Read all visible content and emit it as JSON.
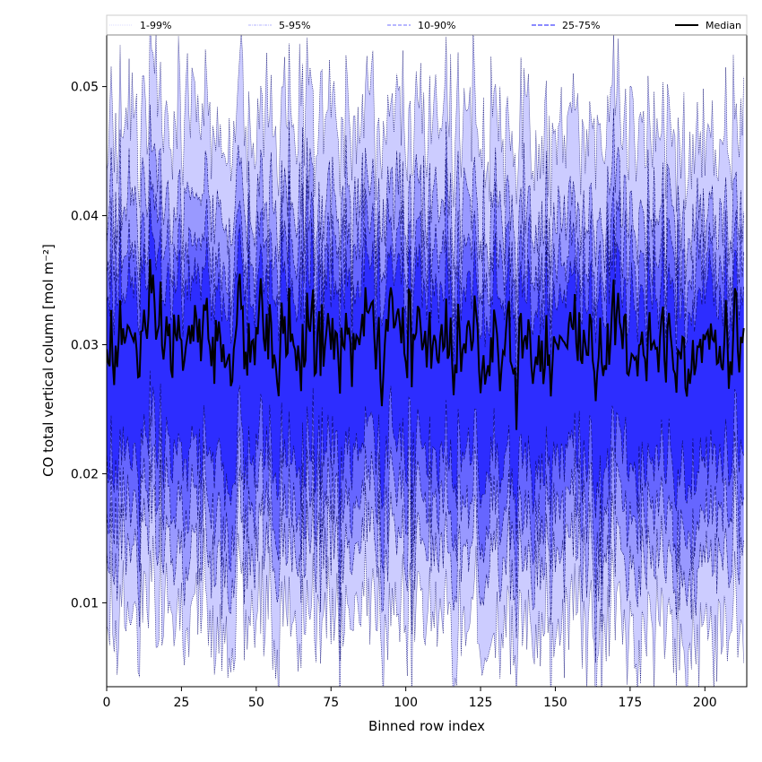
{
  "chart_data": {
    "type": "area",
    "xlabel": "Binned row index",
    "ylabel": "CO total vertical column [mol m⁻²]",
    "xlim": [
      0,
      214
    ],
    "ylim": [
      0.0035,
      0.054
    ],
    "x_ticks": [
      "0",
      "25",
      "50",
      "75",
      "100",
      "125",
      "150",
      "175",
      "200"
    ],
    "x_tick_values": [
      0,
      25,
      50,
      75,
      100,
      125,
      150,
      175,
      200
    ],
    "y_ticks": [
      "0.01",
      "0.02",
      "0.03",
      "0.04",
      "0.05"
    ],
    "y_tick_values": [
      0.01,
      0.02,
      0.03,
      0.04,
      0.05
    ],
    "grid": false,
    "legend_position": "top",
    "legend": [
      {
        "label": "1-99%",
        "style": "dotted",
        "color": "#d0d0ff"
      },
      {
        "label": "5-95%",
        "style": "dashdot",
        "color": "#9a9aff"
      },
      {
        "label": "10-90%",
        "style": "dashed",
        "color": "#6c6cff"
      },
      {
        "label": "25-75%",
        "style": "dashed",
        "color": "#4343ff"
      },
      {
        "label": "Median",
        "style": "solid",
        "color": "#000000"
      }
    ],
    "colors": {
      "band_1_99": "#ccccff",
      "band_5_95": "#9999ff",
      "band_10_90": "#6666ff",
      "band_25_75": "#2d2dff",
      "median": "#000000",
      "edge": "#0a0a6e"
    },
    "x_range": [
      0,
      213
    ],
    "approx_levels": {
      "p99": 0.044,
      "p95": 0.0375,
      "p90": 0.035,
      "p75": 0.033,
      "median": 0.0303,
      "p25": 0.0225,
      "p10": 0.0195,
      "p5": 0.0165,
      "p1": 0.0128
    }
  }
}
